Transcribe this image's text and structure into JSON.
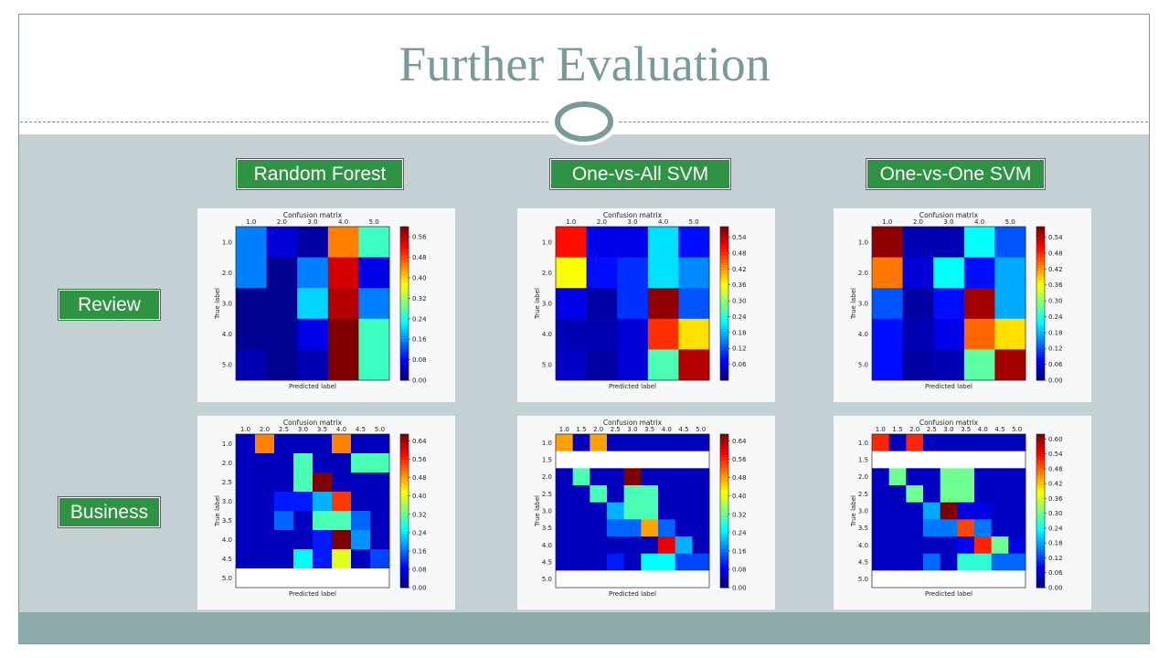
{
  "title": "Further Evaluation",
  "column_labels": [
    "Random Forest",
    "One-vs-All SVM",
    "One-vs-One SVM"
  ],
  "row_labels": [
    "Review",
    "Business"
  ],
  "colors": {
    "title": "#7a9a9a",
    "label_green": "#2e9444",
    "band": "#c5d0d4",
    "footer": "#8eabab"
  },
  "chart_data": [
    {
      "type": "heatmap",
      "title": "Confusion matrix",
      "xlabel": "Predicted label",
      "ylabel": "True label",
      "x_ticks": [
        "1.0",
        "2.0",
        "3.0",
        "4.0",
        "5.0"
      ],
      "y_ticks": [
        "1.0",
        "2.0",
        "3.0",
        "4.0",
        "5.0"
      ],
      "colorbar_ticks": [
        "0.56",
        "0.48",
        "0.40",
        "0.32",
        "0.24",
        "0.16",
        "0.08",
        "0.00"
      ],
      "vmax": 0.6,
      "values": [
        [
          0.15,
          0.05,
          0.02,
          0.45,
          0.26
        ],
        [
          0.15,
          0.01,
          0.15,
          0.55,
          0.06
        ],
        [
          0.01,
          0.01,
          0.2,
          0.57,
          0.15
        ],
        [
          0.01,
          0.01,
          0.06,
          0.62,
          0.26
        ],
        [
          0.03,
          0.01,
          0.03,
          0.62,
          0.26
        ]
      ]
    },
    {
      "type": "heatmap",
      "title": "Confusion matrix",
      "xlabel": "Predicted label",
      "ylabel": "True label",
      "x_ticks": [
        "1.0",
        "2.0",
        "3.0",
        "4.0",
        "5.0"
      ],
      "y_ticks": [
        "1.0",
        "2.0",
        "3.0",
        "4.0",
        "5.0"
      ],
      "colorbar_ticks": [
        "0.54",
        "0.48",
        "0.42",
        "0.36",
        "0.30",
        "0.24",
        "0.18",
        "0.12",
        "0.06"
      ],
      "vmax": 0.58,
      "values": [
        [
          0.5,
          0.06,
          0.06,
          0.2,
          0.08
        ],
        [
          0.36,
          0.08,
          0.1,
          0.2,
          0.15
        ],
        [
          0.06,
          0.02,
          0.1,
          0.57,
          0.12
        ],
        [
          0.03,
          0.03,
          0.05,
          0.48,
          0.38
        ],
        [
          0.04,
          0.02,
          0.05,
          0.26,
          0.55
        ]
      ]
    },
    {
      "type": "heatmap",
      "title": "Confusion matrix",
      "xlabel": "Predicted label",
      "ylabel": "True label",
      "x_ticks": [
        "1.0",
        "2.0",
        "3.0",
        "4.0",
        "5.0"
      ],
      "y_ticks": [
        "1.0",
        "2.0",
        "3.0",
        "4.0",
        "5.0"
      ],
      "colorbar_ticks": [
        "0.54",
        "0.48",
        "0.42",
        "0.36",
        "0.30",
        "0.24",
        "0.18",
        "0.12",
        "0.06",
        "0.00"
      ],
      "vmax": 0.58,
      "values": [
        [
          0.57,
          0.03,
          0.03,
          0.22,
          0.12
        ],
        [
          0.44,
          0.05,
          0.22,
          0.08,
          0.17
        ],
        [
          0.12,
          0.02,
          0.08,
          0.56,
          0.17
        ],
        [
          0.08,
          0.03,
          0.06,
          0.45,
          0.38
        ],
        [
          0.08,
          0.02,
          0.03,
          0.27,
          0.56
        ]
      ]
    },
    {
      "type": "heatmap",
      "title": "Confusion matrix",
      "xlabel": "Predicted label",
      "ylabel": "True label",
      "x_ticks": [
        "1.0",
        "2.0",
        "2.5",
        "3.0",
        "3.5",
        "4.0",
        "4.5",
        "5.0"
      ],
      "y_ticks": [
        "1.0",
        "2.0",
        "2.5",
        "3.0",
        "3.5",
        "4.0",
        "4.5",
        "5.0"
      ],
      "colorbar_ticks": [
        "0.64",
        "0.56",
        "0.48",
        "0.40",
        "0.32",
        "0.24",
        "0.16",
        "0.08",
        "0.00"
      ],
      "vmax": 0.67,
      "values": [
        [
          0.04,
          0.5,
          0.04,
          0.04,
          0.04,
          0.5,
          0.04,
          0.04
        ],
        [
          0.04,
          0.04,
          0.04,
          0.3,
          0.04,
          0.04,
          0.3,
          0.3
        ],
        [
          0.04,
          0.04,
          0.04,
          0.3,
          0.67,
          0.04,
          0.04,
          0.04
        ],
        [
          0.04,
          0.04,
          0.1,
          0.1,
          0.2,
          0.55,
          0.04,
          0.04
        ],
        [
          0.04,
          0.04,
          0.15,
          0.04,
          0.3,
          0.3,
          0.15,
          0.04
        ],
        [
          0.04,
          0.04,
          0.04,
          0.04,
          0.1,
          0.67,
          0.18,
          0.04
        ],
        [
          0.04,
          0.04,
          0.04,
          0.25,
          0.1,
          0.4,
          0.04,
          0.13
        ],
        [
          null,
          null,
          null,
          null,
          null,
          null,
          null,
          null
        ]
      ]
    },
    {
      "type": "heatmap",
      "title": "Confusion matrix",
      "xlabel": "Predicted label",
      "ylabel": "True label",
      "x_ticks": [
        "1.0",
        "1.5",
        "2.0",
        "2.5",
        "3.0",
        "3.5",
        "4.0",
        "4.5",
        "5.0"
      ],
      "y_ticks": [
        "1.0",
        "1.5",
        "2.0",
        "2.5",
        "3.0",
        "3.5",
        "4.0",
        "4.5",
        "5.0"
      ],
      "colorbar_ticks": [
        "0.64",
        "0.56",
        "0.48",
        "0.40",
        "0.32",
        "0.24",
        "0.16",
        "0.08",
        "0.00"
      ],
      "vmax": 0.67,
      "values": [
        [
          0.48,
          0.04,
          0.48,
          0.04,
          0.04,
          0.04,
          0.04,
          0.04,
          0.04
        ],
        [
          null,
          null,
          null,
          null,
          null,
          null,
          null,
          null,
          null
        ],
        [
          0.04,
          0.3,
          0.04,
          0.04,
          0.67,
          0.04,
          0.04,
          0.04,
          0.04
        ],
        [
          0.04,
          0.04,
          0.3,
          0.04,
          0.3,
          0.3,
          0.04,
          0.04,
          0.04
        ],
        [
          0.04,
          0.04,
          0.04,
          0.2,
          0.3,
          0.3,
          0.04,
          0.04,
          0.04
        ],
        [
          0.04,
          0.04,
          0.04,
          0.15,
          0.15,
          0.48,
          0.15,
          0.04,
          0.04
        ],
        [
          0.04,
          0.04,
          0.04,
          0.04,
          0.04,
          0.04,
          0.6,
          0.2,
          0.04
        ],
        [
          0.04,
          0.04,
          0.04,
          0.1,
          0.04,
          0.25,
          0.25,
          0.13,
          0.13
        ],
        [
          null,
          null,
          null,
          null,
          null,
          null,
          null,
          null,
          null
        ]
      ]
    },
    {
      "type": "heatmap",
      "title": "Confusion matrix",
      "xlabel": "Predicted label",
      "ylabel": "True label",
      "x_ticks": [
        "1.0",
        "1.5",
        "2.0",
        "2.5",
        "3.0",
        "3.5",
        "4.0",
        "4.5",
        "5.0"
      ],
      "y_ticks": [
        "1.0",
        "1.5",
        "2.0",
        "2.5",
        "3.0",
        "3.5",
        "4.0",
        "4.5",
        "5.0"
      ],
      "colorbar_ticks": [
        "0.60",
        "0.54",
        "0.48",
        "0.42",
        "0.36",
        "0.30",
        "0.24",
        "0.18",
        "0.12",
        "0.06",
        "0.00"
      ],
      "vmax": 0.62,
      "values": [
        [
          0.52,
          0.04,
          0.52,
          0.04,
          0.04,
          0.04,
          0.04,
          0.04,
          0.04
        ],
        [
          null,
          null,
          null,
          null,
          null,
          null,
          null,
          null,
          null
        ],
        [
          0.04,
          0.3,
          0.04,
          0.04,
          0.3,
          0.3,
          0.04,
          0.04,
          0.04
        ],
        [
          0.04,
          0.04,
          0.3,
          0.04,
          0.3,
          0.3,
          0.04,
          0.04,
          0.04
        ],
        [
          0.04,
          0.04,
          0.04,
          0.18,
          0.62,
          0.06,
          0.06,
          0.04,
          0.04
        ],
        [
          0.04,
          0.04,
          0.04,
          0.15,
          0.15,
          0.5,
          0.15,
          0.04,
          0.04
        ],
        [
          0.04,
          0.04,
          0.04,
          0.04,
          0.04,
          0.08,
          0.52,
          0.3,
          0.06
        ],
        [
          0.04,
          0.04,
          0.04,
          0.14,
          0.04,
          0.26,
          0.26,
          0.14,
          0.14
        ],
        [
          null,
          null,
          null,
          null,
          null,
          null,
          null,
          null,
          null
        ]
      ]
    }
  ]
}
